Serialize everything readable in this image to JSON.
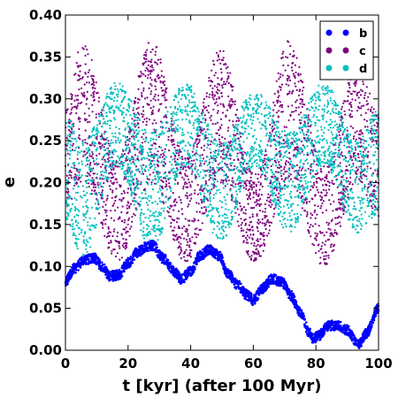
{
  "chart_data": {
    "type": "scatter",
    "title": "",
    "xlabel": "t [kyr] (after 100 Myr)",
    "ylabel": "e",
    "xlim": [
      0,
      100
    ],
    "ylim": [
      0,
      0.4
    ],
    "x_ticks": [
      0,
      20,
      40,
      60,
      80,
      100
    ],
    "x_tick_labels": [
      "0",
      "20",
      "40",
      "60",
      "80",
      "100"
    ],
    "y_ticks": [
      0,
      0.05,
      0.1,
      0.15,
      0.2,
      0.25,
      0.3,
      0.35,
      0.4
    ],
    "y_tick_labels": [
      "0.00",
      "0.05",
      "0.10",
      "0.15",
      "0.20",
      "0.25",
      "0.30",
      "0.35",
      "0.40"
    ],
    "grid": false,
    "legend_position": "top-right",
    "series": [
      {
        "name": "b",
        "color": "#0000ff",
        "x": [
          0,
          3,
          6,
          9,
          12,
          14,
          17,
          20,
          23,
          26,
          28,
          31,
          35,
          37,
          40,
          43,
          46,
          49,
          52,
          55,
          58,
          60,
          63,
          66,
          69,
          72,
          75,
          78,
          79,
          81,
          84,
          87,
          90,
          93,
          94,
          96,
          100
        ],
        "y": [
          0.082,
          0.098,
          0.108,
          0.11,
          0.099,
          0.088,
          0.09,
          0.104,
          0.117,
          0.124,
          0.125,
          0.11,
          0.093,
          0.085,
          0.095,
          0.113,
          0.12,
          0.113,
          0.092,
          0.078,
          0.066,
          0.06,
          0.074,
          0.085,
          0.082,
          0.065,
          0.045,
          0.02,
          0.013,
          0.018,
          0.029,
          0.03,
          0.024,
          0.01,
          0.008,
          0.02,
          0.05
        ]
      },
      {
        "name": "c",
        "color": "#800080",
        "centers": [
          0,
          5.5,
          16.5,
          27.5,
          38.5,
          49.5,
          60.5,
          71.5,
          82.5,
          93.5,
          100
        ],
        "upper": [
          0.29,
          0.37,
          0.23,
          0.37,
          0.23,
          0.36,
          0.21,
          0.37,
          0.22,
          0.35,
          0.28
        ],
        "lower": [
          0.17,
          0.2,
          0.105,
          0.2,
          0.105,
          0.2,
          0.105,
          0.2,
          0.1,
          0.2,
          0.16
        ]
      },
      {
        "name": "d",
        "color": "#00bfbf",
        "centers": [
          0,
          5.5,
          16.5,
          27.5,
          38.5,
          49.5,
          60.5,
          71.5,
          82.5,
          93.5,
          100
        ],
        "upper": [
          0.28,
          0.25,
          0.32,
          0.26,
          0.32,
          0.25,
          0.31,
          0.26,
          0.32,
          0.25,
          0.29
        ],
        "lower": [
          0.15,
          0.11,
          0.22,
          0.12,
          0.22,
          0.13,
          0.22,
          0.14,
          0.22,
          0.14,
          0.16
        ]
      }
    ]
  }
}
